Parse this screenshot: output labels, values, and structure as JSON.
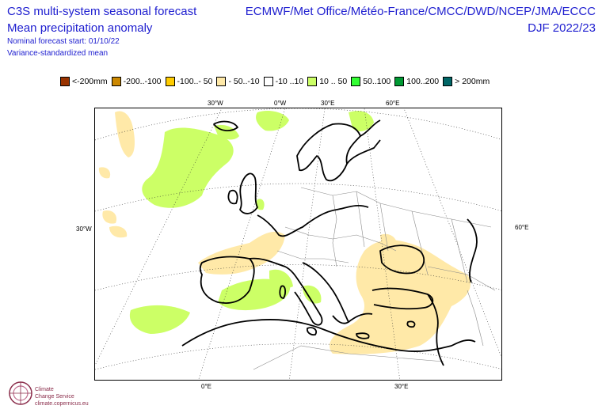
{
  "header": {
    "title_line1": "C3S multi-system seasonal forecast",
    "title_line2": "Mean precipitation anomaly",
    "subtitle_line1": "Nominal forecast start: 01/10/22",
    "subtitle_line2": "Variance-standardized mean",
    "systems": "ECMWF/Met Office/Météo-France/CMCC/DWD/NCEP/JMA/ECCC",
    "season": "DJF 2022/23"
  },
  "legend": [
    {
      "label": "<-200mm",
      "color": "#993300"
    },
    {
      "label": "-200..-100",
      "color": "#cc8800"
    },
    {
      "label": "-100..- 50",
      "color": "#ffcc00"
    },
    {
      "label": "- 50..-10",
      "color": "#ffe9a8"
    },
    {
      "label": "-10 ..10",
      "color": "#ffffff"
    },
    {
      "label": "10 .. 50",
      "color": "#ccff66"
    },
    {
      "label": "50..100",
      "color": "#33ff33"
    },
    {
      "label": "100..200",
      "color": "#009933"
    },
    {
      "label": "> 200mm",
      "color": "#006666"
    }
  ],
  "axes": {
    "top": [
      "30°W",
      "0°W",
      "30°E",
      "60°E"
    ],
    "left": "30°W",
    "right": "60°E",
    "bottom": [
      "0°E",
      "30°E"
    ]
  },
  "colors": {
    "wet_10_50": "#ccff66",
    "dry_50_10": "#ffe9a8",
    "text_blue": "#2020d0"
  },
  "logo": {
    "line1": "Climate",
    "line2": "Change Service",
    "line3": "climate.copernicus.eu"
  }
}
